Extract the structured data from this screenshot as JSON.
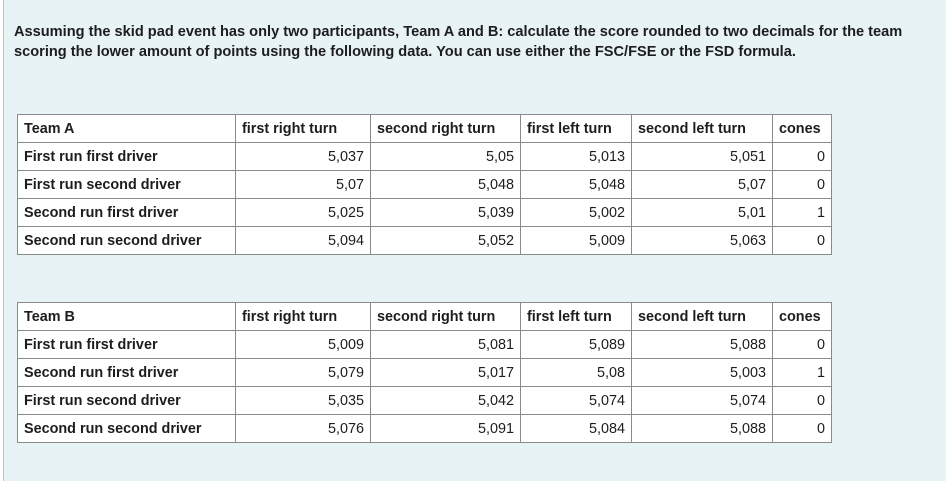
{
  "question": "Assuming the skid pad event has only two participants, Team A and B: calculate the score rounded to two decimals for the team scoring the lower amount of points using the following data. You can use either the FSC/FSE or the FSD formula.",
  "tables": [
    {
      "team": "Team A",
      "columns": [
        "first right turn",
        "second right turn",
        "first left turn",
        "second left turn",
        "cones"
      ],
      "rows": [
        {
          "label": "First run first driver",
          "values": [
            "5,037",
            "5,05",
            "5,013",
            "5,051",
            "0"
          ]
        },
        {
          "label": "First run second driver",
          "values": [
            "5,07",
            "5,048",
            "5,048",
            "5,07",
            "0"
          ]
        },
        {
          "label": "Second run first driver",
          "values": [
            "5,025",
            "5,039",
            "5,002",
            "5,01",
            "1"
          ]
        },
        {
          "label": "Second run second driver",
          "values": [
            "5,094",
            "5,052",
            "5,009",
            "5,063",
            "0"
          ]
        }
      ]
    },
    {
      "team": "Team B",
      "columns": [
        "first right turn",
        "second right turn",
        "first left turn",
        "second left turn",
        "cones"
      ],
      "rows": [
        {
          "label": "First run first driver",
          "values": [
            "5,009",
            "5,081",
            "5,089",
            "5,088",
            "0"
          ]
        },
        {
          "label": "Second run first driver",
          "values": [
            "5,079",
            "5,017",
            "5,08",
            "5,003",
            "1"
          ]
        },
        {
          "label": "First run second driver",
          "values": [
            "5,035",
            "5,042",
            "5,074",
            "5,074",
            "0"
          ]
        },
        {
          "label": "Second run second driver",
          "values": [
            "5,076",
            "5,091",
            "5,084",
            "5,088",
            "0"
          ]
        }
      ]
    }
  ]
}
